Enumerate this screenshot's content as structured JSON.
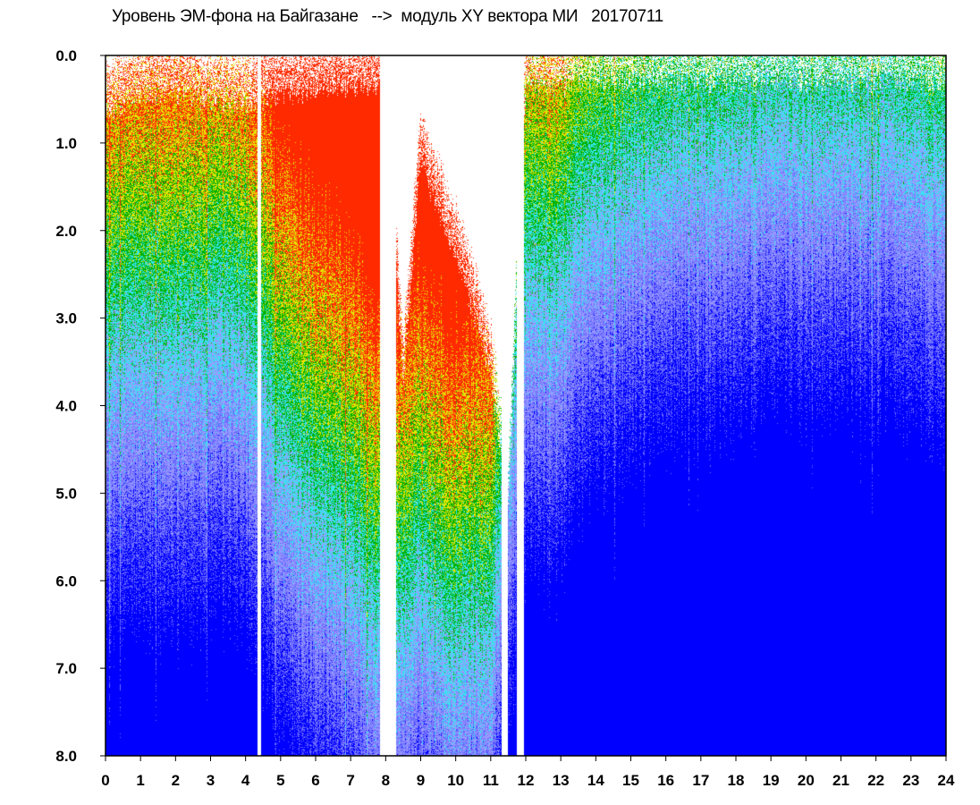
{
  "chart_data": {
    "type": "heatmap",
    "title": "Уровень ЭМ-фона на Байгазане   -->  модуль XY вектора МИ   20170711",
    "xlabel": "",
    "ylabel": "",
    "xlim": [
      0,
      24
    ],
    "ylim": [
      0,
      8
    ],
    "y_inverted": true,
    "grid": false,
    "x_ticks": [
      "0",
      "1",
      "2",
      "3",
      "4",
      "5",
      "6",
      "7",
      "8",
      "9",
      "10",
      "11",
      "12",
      "13",
      "14",
      "15",
      "16",
      "17",
      "18",
      "19",
      "20",
      "21",
      "22",
      "23",
      "24"
    ],
    "y_ticks": [
      "0.0",
      "1.0",
      "2.0",
      "3.0",
      "4.0",
      "5.0",
      "6.0",
      "7.0",
      "8.0"
    ],
    "color_scale": [
      "#0000ff",
      "#6a6aff",
      "#9a9aff",
      "#33e6f0",
      "#00b000",
      "#e6e600",
      "#ff2a00"
    ],
    "upper_edge_hours": [
      0,
      0.5,
      1,
      1.5,
      2,
      2.5,
      3,
      3.5,
      4,
      4.5,
      5,
      5.5,
      6,
      6.5,
      7,
      7.5,
      8,
      8.5,
      9,
      9.5,
      10,
      10.5,
      11,
      11.5,
      12,
      12.5,
      13,
      13.5,
      14,
      14.5,
      15,
      15.5,
      16,
      16.5,
      17,
      17.5,
      18,
      18.5,
      19,
      19.5,
      20,
      20.5,
      21,
      21.5,
      22,
      22.5,
      23,
      23.5,
      24
    ],
    "upper_edge_values": [
      0.4,
      0.3,
      0.2,
      0.2,
      0.2,
      0.2,
      0.3,
      0.3,
      0.3,
      0.3,
      0.2,
      0.2,
      0.1,
      0.1,
      0.1,
      0.1,
      0.1,
      3.5,
      1.0,
      1.5,
      2.0,
      2.7,
      3.4,
      5.0,
      0.1,
      0.1,
      0.1,
      0.1,
      0.05,
      0.05,
      0.05,
      0.05,
      0.05,
      0.05,
      0.05,
      0.05,
      0.05,
      0.05,
      0.05,
      0.05,
      0.05,
      0.05,
      0.05,
      0.05,
      0.05,
      0.05,
      0.05,
      0.05,
      0.05
    ],
    "gaps_hours": [
      [
        4.35,
        4.45
      ],
      [
        7.85,
        8.3
      ],
      [
        11.3,
        11.5
      ],
      [
        11.75,
        11.95
      ]
    ],
    "median_level_hours": [
      0,
      1,
      2,
      3,
      4,
      5,
      6,
      7,
      8,
      9,
      10,
      11,
      12,
      13,
      14,
      15,
      16,
      17,
      18,
      19,
      20,
      21,
      22,
      23,
      24
    ],
    "median_level_values": [
      3.2,
      3.0,
      3.3,
      3.0,
      3.1,
      4.5,
      5.0,
      5.5,
      6.5,
      6.0,
      6.5,
      6.5,
      2.5,
      2.5,
      1.5,
      1.2,
      1.0,
      0.9,
      0.8,
      0.6,
      0.6,
      0.6,
      0.7,
      0.8,
      0.9
    ]
  }
}
